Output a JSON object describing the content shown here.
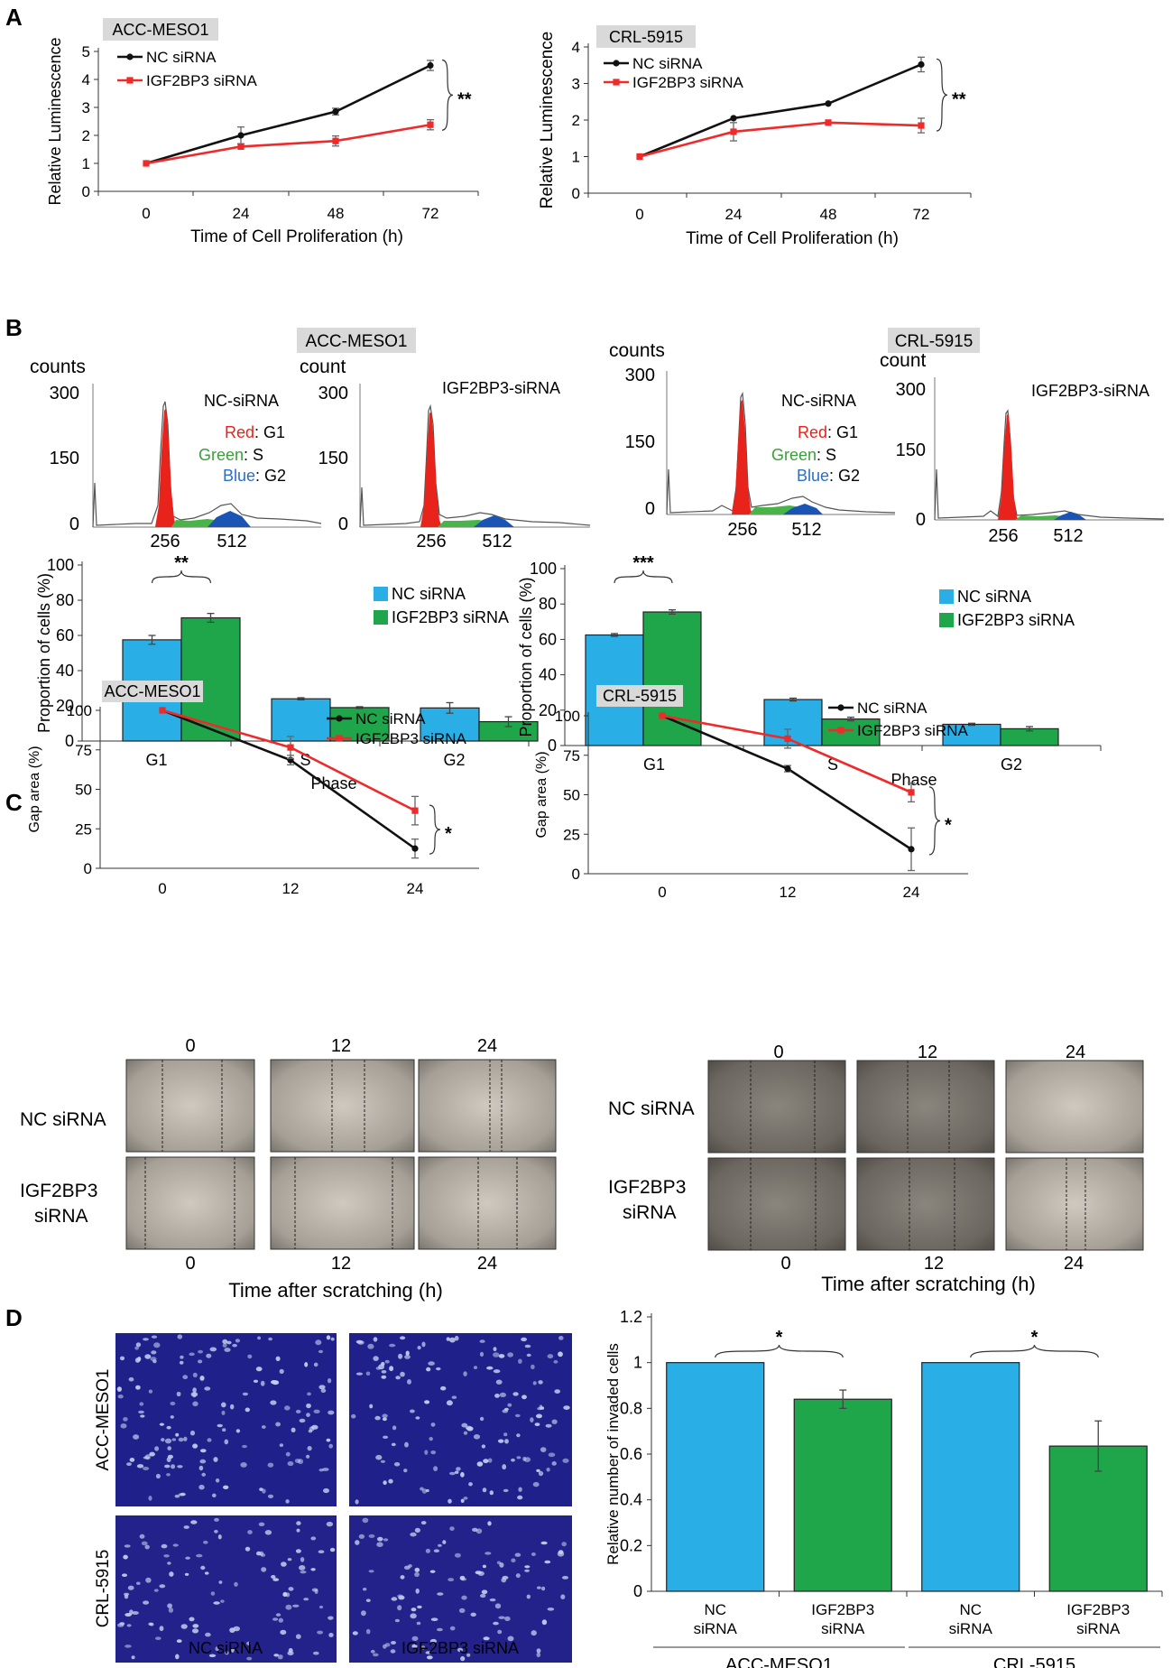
{
  "panel_labels": {
    "A": "A",
    "B": "B",
    "C": "C",
    "D": "D"
  },
  "colors": {
    "nc_line": "#111111",
    "kd_line": "#ee2a2a",
    "nc_bar": "#29aee6",
    "kd_bar": "#1fa64a",
    "g1": "#e8231c",
    "s": "#49b548",
    "g2": "#1a55b5",
    "cell_bg": "#1f1f86",
    "nucleus": "#c5cff0"
  },
  "panel_b": {
    "left": {
      "cell_line": "ACC-MESO1",
      "nc_label": "NC-siRNA",
      "kd_label": "IGF2BP3-siRNA",
      "ylabel_nc": "counts",
      "ylabel_kd": "count",
      "yticks": [
        "300",
        "150",
        "0"
      ],
      "xticks": [
        "256",
        "512"
      ],
      "legend": {
        "red_word": "Red",
        "red_rest": ": G1",
        "green_word": "Green",
        "green_rest": ": S",
        "blue_word": "Blue",
        "blue_rest": ": G2"
      }
    },
    "right": {
      "cell_line": "CRL-5915",
      "nc_label": "NC-siRNA",
      "kd_label": "IGF2BP3-siRNA",
      "ylabel_nc": "counts",
      "ylabel_kd": "count",
      "yticks": [
        "300",
        "150",
        "0"
      ],
      "xticks": [
        "256",
        "512"
      ],
      "legend": {
        "red_word": "Red",
        "red_rest": ": G1",
        "green_word": "Green",
        "green_rest": ": S",
        "blue_word": "Blue",
        "blue_rest": ": G2"
      }
    }
  },
  "panel_c": {
    "left": {
      "row_nc": "NC siRNA",
      "row_kd_1": "IGF2BP3",
      "row_kd_2": "siRNA",
      "col_labels": [
        "0",
        "12",
        "24"
      ],
      "xlabel": "Time after scratching (h)"
    },
    "right": {
      "row_nc": "NC siRNA",
      "row_kd_1": "IGF2BP3",
      "row_kd_2": "siRNA",
      "col_labels": [
        "0",
        "12",
        "24"
      ],
      "xlabel": "Time after scratching (h)"
    }
  },
  "panel_d": {
    "image_rows": [
      "ACC-MESO1",
      "CRL-5915"
    ],
    "image_cols": [
      "NC siRNA",
      "IGF2BP3 siRNA"
    ]
  },
  "chart_data": [
    {
      "id": "A-left",
      "type": "line",
      "title": "ACC-MESO1",
      "xlabel": "Time  of Cell Proliferation (h)",
      "ylabel": "Relative Luminescence",
      "categories": [
        "0",
        "24",
        "48",
        "72"
      ],
      "ylim": [
        0,
        5
      ],
      "yticks": [
        0,
        1,
        2,
        3,
        4,
        5
      ],
      "series": [
        {
          "name": "NC siRNA",
          "values": [
            1.0,
            2.0,
            2.85,
            4.5
          ],
          "errors": [
            0,
            0.3,
            0.12,
            0.18
          ]
        },
        {
          "name": "IGF2BP3 siRNA",
          "values": [
            1.0,
            1.6,
            1.8,
            2.38
          ],
          "errors": [
            0,
            0,
            0.18,
            0.18
          ]
        }
      ],
      "annotation": "**"
    },
    {
      "id": "A-right",
      "type": "line",
      "title": "CRL-5915",
      "xlabel": "Time  of Cell Proliferation (h)",
      "ylabel": "Relative Luminescence",
      "categories": [
        "0",
        "24",
        "48",
        "72"
      ],
      "ylim": [
        0,
        4
      ],
      "yticks": [
        0,
        1,
        2,
        3,
        4
      ],
      "series": [
        {
          "name": "NC siRNA",
          "values": [
            1.0,
            2.05,
            2.45,
            3.52
          ],
          "errors": [
            0,
            0,
            0,
            0.2
          ]
        },
        {
          "name": "IGF2BP3 siRNA",
          "values": [
            1.0,
            1.68,
            1.93,
            1.85
          ],
          "errors": [
            0,
            0.25,
            0,
            0.2
          ]
        }
      ],
      "annotation": "**"
    },
    {
      "id": "B-left",
      "type": "bar",
      "title": "ACC-MESO1",
      "xlabel": "Phase",
      "ylabel": "Proportion of cells (%)",
      "categories": [
        "G1",
        "S",
        "G2"
      ],
      "ylim": [
        0,
        100
      ],
      "yticks": [
        0,
        20,
        40,
        60,
        80,
        100
      ],
      "series": [
        {
          "name": "NC siRNA",
          "values": [
            57.5,
            24,
            18.8
          ],
          "errors": [
            2.5,
            0.6,
            3.0
          ]
        },
        {
          "name": "IGF2BP3 siRNA",
          "values": [
            70,
            19,
            11
          ],
          "errors": [
            2.5,
            0.5,
            2.8
          ]
        }
      ],
      "annotation": "**"
    },
    {
      "id": "B-right",
      "type": "bar",
      "title": "CRL-5915",
      "xlabel": "Phase",
      "ylabel": "Proportion of cells (%)",
      "categories": [
        "G1",
        "S",
        "G2"
      ],
      "ylim": [
        0,
        100
      ],
      "yticks": [
        0,
        20,
        40,
        60,
        80,
        100
      ],
      "series": [
        {
          "name": "NC siRNA",
          "values": [
            62.5,
            26,
            12
          ],
          "errors": [
            0.8,
            0.8,
            0.6
          ]
        },
        {
          "name": "IGF2BP3 siRNA",
          "values": [
            75.5,
            15,
            9.5
          ],
          "errors": [
            1.2,
            1.0,
            1.2
          ]
        }
      ],
      "annotation": "***"
    },
    {
      "id": "C-left",
      "type": "line",
      "title": "ACC-MESO1",
      "xlabel": "",
      "ylabel": "Gap area (%)",
      "categories": [
        "0",
        "12",
        "24"
      ],
      "ylim": [
        0,
        100
      ],
      "yticks": [
        0,
        25,
        50,
        75,
        100
      ],
      "series": [
        {
          "name": "NC siRNA",
          "values": [
            100,
            68.5,
            12.5
          ],
          "errors": [
            0,
            3,
            6
          ]
        },
        {
          "name": "IGF2BP3 siRNA",
          "values": [
            100,
            76.5,
            36.5
          ],
          "errors": [
            0,
            7,
            9
          ]
        }
      ],
      "annotation": "*"
    },
    {
      "id": "C-right",
      "type": "line",
      "title": "CRL-5915",
      "xlabel": "",
      "ylabel": "Gap area (%)",
      "categories": [
        "0",
        "12",
        "24"
      ],
      "ylim": [
        0,
        100
      ],
      "yticks": [
        0,
        25,
        50,
        75,
        100
      ],
      "series": [
        {
          "name": "NC siRNA",
          "values": [
            100,
            66.5,
            15.5
          ],
          "errors": [
            0,
            2,
            13.5
          ]
        },
        {
          "name": "IGF2BP3 siRNA",
          "values": [
            100,
            85.5,
            51.5
          ],
          "errors": [
            0,
            6,
            6
          ]
        }
      ],
      "annotation": "*"
    },
    {
      "id": "D",
      "type": "bar",
      "title": "",
      "xlabel": "",
      "ylabel": "Relative number of invaded cells",
      "categories": [
        "NC siRNA",
        "IGF2BP3 siRNA",
        "NC siRNA",
        "IGF2BP3 siRNA"
      ],
      "category_lines": [
        [
          "NC",
          "siRNA"
        ],
        [
          "IGF2BP3",
          "siRNA"
        ],
        [
          "NC",
          "siRNA"
        ],
        [
          "IGF2BP3",
          "siRNA"
        ]
      ],
      "groups": [
        "ACC-MESO1",
        "CRL-5915"
      ],
      "ylim": [
        0,
        1.2
      ],
      "yticks": [
        "0",
        "0.2",
        "0.4",
        "0.6",
        "0.8",
        "1",
        "1.2"
      ],
      "values": [
        1.0,
        0.84,
        1.0,
        0.635
      ],
      "errors": [
        0,
        0.04,
        0,
        0.11
      ],
      "annotations": [
        "*",
        "*"
      ]
    }
  ]
}
